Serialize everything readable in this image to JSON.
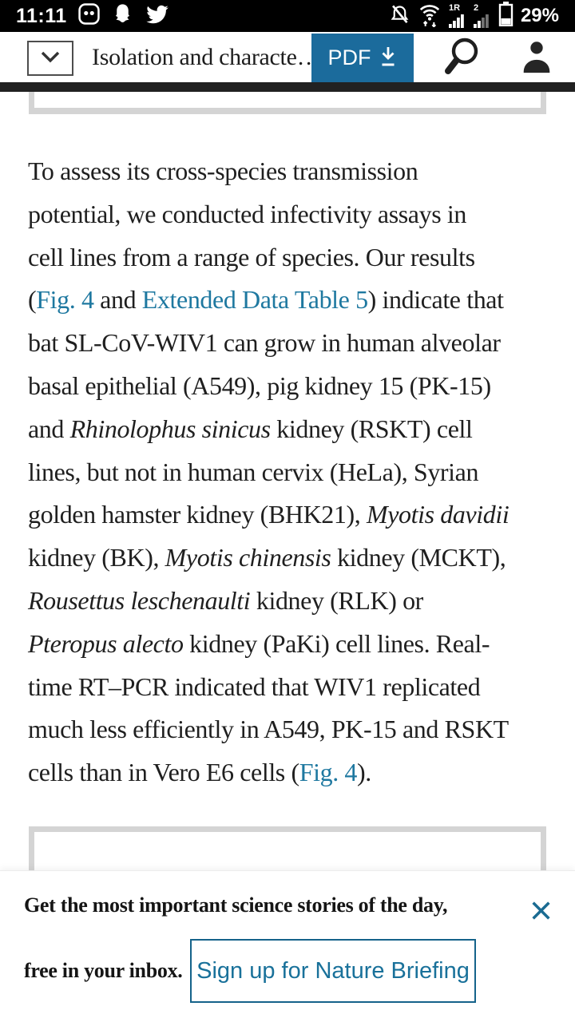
{
  "status_bar": {
    "time": "11:11",
    "signal_primary_label": "1R",
    "signal_secondary_label": "2",
    "battery_percent": "29%"
  },
  "header": {
    "title": "Isolation and characte…",
    "pdf_label": "PDF"
  },
  "article": {
    "lines": [
      [
        {
          "t": "To assess its cross-species transmission",
          "s": "n"
        }
      ],
      [
        {
          "t": "potential, we conducted infectivity assays in",
          "s": "n"
        }
      ],
      [
        {
          "t": "cell lines from a range of species. Our results",
          "s": "n"
        }
      ],
      [
        {
          "t": "(",
          "s": "n"
        },
        {
          "t": "Fig. 4",
          "s": "l"
        },
        {
          "t": " and ",
          "s": "n"
        },
        {
          "t": "Extended Data Table 5",
          "s": "l"
        },
        {
          "t": ") indicate that",
          "s": "n"
        }
      ],
      [
        {
          "t": "bat SL-CoV-WIV1 can grow in human alveolar",
          "s": "n"
        }
      ],
      [
        {
          "t": "basal epithelial (A549), pig kidney 15 (PK-15)",
          "s": "n"
        }
      ],
      [
        {
          "t": "and ",
          "s": "n"
        },
        {
          "t": "Rhinolophus sinicus",
          "s": "i"
        },
        {
          "t": " kidney (RSKT) cell",
          "s": "n"
        }
      ],
      [
        {
          "t": "lines, but not in human cervix (HeLa), Syrian",
          "s": "n"
        }
      ],
      [
        {
          "t": "golden hamster kidney (BHK21), ",
          "s": "n"
        },
        {
          "t": "Myotis davidii",
          "s": "i"
        }
      ],
      [
        {
          "t": "kidney (BK), ",
          "s": "n"
        },
        {
          "t": "Myotis chinensis",
          "s": "i"
        },
        {
          "t": " kidney (MCKT),",
          "s": "n"
        }
      ],
      [
        {
          "t": "Rousettus leschenaulti",
          "s": "i"
        },
        {
          "t": " kidney (RLK) or",
          "s": "n"
        }
      ],
      [
        {
          "t": "Pteropus alecto",
          "s": "i"
        },
        {
          "t": " kidney (PaKi) cell lines. Real-",
          "s": "n"
        }
      ],
      [
        {
          "t": "time RT–PCR indicated that WIV1 replicated",
          "s": "n"
        }
      ],
      [
        {
          "t": "much less efficiently in A549, PK-15 and RSKT",
          "s": "n"
        }
      ],
      [
        {
          "t": "cells than in Vero E6 cells (",
          "s": "n"
        },
        {
          "t": "Fig. 4",
          "s": "l"
        },
        {
          "t": ").",
          "s": "n"
        }
      ]
    ]
  },
  "banner": {
    "message_line1": "Get the most important science stories of the day,",
    "message_line2": "free in your inbox.",
    "signup_label": "Sign up for Nature Briefing"
  },
  "colors": {
    "pdf_button_bg": "#1b6b9c",
    "link": "#1e78a0",
    "banner_accent": "#15638a",
    "figure_border": "#d4d4d4",
    "status_bar_bg": "#000000"
  }
}
